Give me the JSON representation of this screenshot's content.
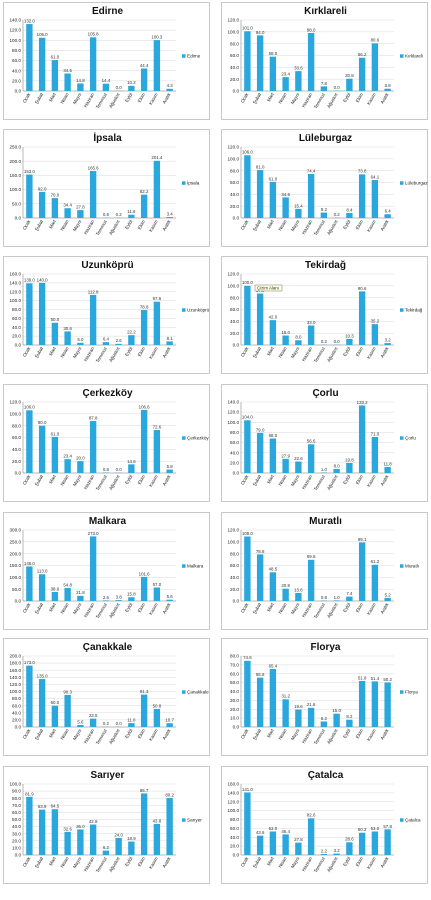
{
  "month_categories": [
    "Ocak",
    "Şubat",
    "Mart",
    "Nisan",
    "Mayıs",
    "Haziran",
    "Temmuz",
    "Ağustos",
    "Eylül",
    "Ekim",
    "Kasım",
    "Aralık"
  ],
  "colors": {
    "bar": "#2aa7dc",
    "grid": "#d9d9d9",
    "axis": "#888888",
    "panel_border": "#c9c9c9"
  },
  "chart_data": [
    {
      "type": "bar",
      "title": "Edirne",
      "legend": "Edirne",
      "legend_position": "right",
      "ylim": [
        0,
        140
      ],
      "ytick_step": 20,
      "grid": true,
      "values": [
        132.0,
        105.0,
        61.0,
        34.5,
        14.8,
        105.8,
        14.4,
        0.0,
        10.2,
        44.4,
        100.3,
        4.3
      ]
    },
    {
      "type": "bar",
      "title": "Kırklareli",
      "legend": "Kırklareli",
      "legend_position": "right",
      "ylim": [
        0,
        120
      ],
      "ytick_step": 20,
      "grid": true,
      "values": [
        101.0,
        94.0,
        58.0,
        23.4,
        33.6,
        98.0,
        7.8,
        0.0,
        20.8,
        56.2,
        80.6,
        3.8
      ]
    },
    {
      "type": "bar",
      "title": "İpsala",
      "legend": "İpsala",
      "legend_position": "right",
      "ylim": [
        0,
        250
      ],
      "ytick_step": 50,
      "grid": true,
      "values": [
        153.0,
        92.0,
        70.0,
        34.4,
        27.8,
        165.6,
        0.6,
        0.2,
        11.6,
        82.2,
        201.4,
        3.4
      ]
    },
    {
      "type": "bar",
      "title": "Lüleburgaz",
      "legend": "Lüleburgaz",
      "legend_position": "right",
      "ylim": [
        0,
        120
      ],
      "ytick_step": 20,
      "grid": true,
      "values": [
        106.0,
        81.0,
        61.0,
        34.8,
        15.4,
        74.4,
        9.2,
        0.2,
        8.4,
        73.8,
        64.1,
        6.4
      ]
    },
    {
      "type": "bar",
      "title": "Uzunköprü",
      "legend": "Uzunköprü",
      "legend_position": "right",
      "ylim": [
        0,
        160
      ],
      "ytick_step": 20,
      "grid": true,
      "values": [
        139.0,
        140.0,
        50.0,
        30.6,
        5.0,
        112.8,
        6.4,
        2.6,
        22.2,
        78.8,
        97.6,
        8.1
      ]
    },
    {
      "type": "bar",
      "title": "Tekirdağ",
      "legend": "Tekirdağ",
      "legend_position": "right",
      "ylim": [
        0,
        120
      ],
      "ytick_step": 20,
      "grid": true,
      "annotation": "Çizim Alanı",
      "values": [
        100.0,
        87.0,
        42.0,
        16.0,
        8.0,
        33.0,
        0.2,
        0.0,
        10.3,
        90.6,
        35.2,
        3.2
      ]
    },
    {
      "type": "bar",
      "title": "Çerkezköy",
      "legend": "Çerkezköy",
      "legend_position": "right",
      "ylim": [
        0,
        120
      ],
      "ytick_step": 20,
      "grid": true,
      "values": [
        106.0,
        80.0,
        61.0,
        23.4,
        20.0,
        87.8,
        0.8,
        0.0,
        14.6,
        106.6,
        72.6,
        5.8
      ]
    },
    {
      "type": "bar",
      "title": "Çorlu",
      "legend": "Çorlu",
      "legend_position": "right",
      "ylim": [
        0,
        140
      ],
      "ytick_step": 20,
      "grid": true,
      "values": [
        104.0,
        79.0,
        68.0,
        27.9,
        22.6,
        56.6,
        1.0,
        8.0,
        19.8,
        133.2,
        71.0,
        11.8
      ]
    },
    {
      "type": "bar",
      "title": "Malkara",
      "legend": "Malkara",
      "legend_position": "right",
      "ylim": [
        0,
        300
      ],
      "ytick_step": 50,
      "grid": true,
      "values": [
        146.0,
        113.0,
        38.0,
        54.8,
        21.8,
        273.0,
        2.6,
        3.8,
        15.8,
        101.6,
        57.0,
        5.6
      ]
    },
    {
      "type": "bar",
      "title": "Muratlı",
      "legend": "Muratlı",
      "legend_position": "right",
      "ylim": [
        0,
        120
      ],
      "ytick_step": 20,
      "grid": true,
      "values": [
        109.0,
        78.8,
        48.5,
        20.8,
        13.6,
        69.6,
        0.8,
        1.0,
        7.4,
        99.1,
        61.2,
        5.2
      ]
    },
    {
      "type": "bar",
      "title": "Çanakkale",
      "legend": "Çanakkale",
      "legend_position": "right",
      "ylim": [
        0,
        200
      ],
      "ytick_step": 20,
      "grid": true,
      "values": [
        173.0,
        135.0,
        60.0,
        90.3,
        5.6,
        23.5,
        0.2,
        0.0,
        11.0,
        91.3,
        50.8,
        10.7
      ]
    },
    {
      "type": "bar",
      "title": "Florya",
      "legend": "Florya",
      "legend_position": "right",
      "ylim": [
        0,
        80
      ],
      "ytick_step": 10,
      "grid": true,
      "values": [
        74.6,
        55.6,
        65.4,
        31.2,
        19.6,
        21.6,
        6.2,
        15.0,
        8.2,
        51.8,
        51.4,
        50.2
      ]
    },
    {
      "type": "bar",
      "title": "Sarıyer",
      "legend": "Sarıyer",
      "legend_position": "right",
      "ylim": [
        0,
        100
      ],
      "ytick_step": 10,
      "grid": true,
      "values": [
        81.9,
        63.9,
        64.5,
        32.6,
        36.0,
        42.9,
        6.2,
        24.0,
        18.9,
        86.7,
        43.8,
        80.2
      ]
    },
    {
      "type": "bar",
      "title": "Çatalca",
      "legend": "Çatalca",
      "legend_position": "right",
      "ylim": [
        0,
        160
      ],
      "ytick_step": 20,
      "grid": true,
      "values": [
        141.0,
        43.6,
        53.0,
        46.4,
        27.8,
        82.6,
        2.2,
        3.2,
        28.6,
        50.2,
        53.0,
        57.8
      ]
    }
  ]
}
